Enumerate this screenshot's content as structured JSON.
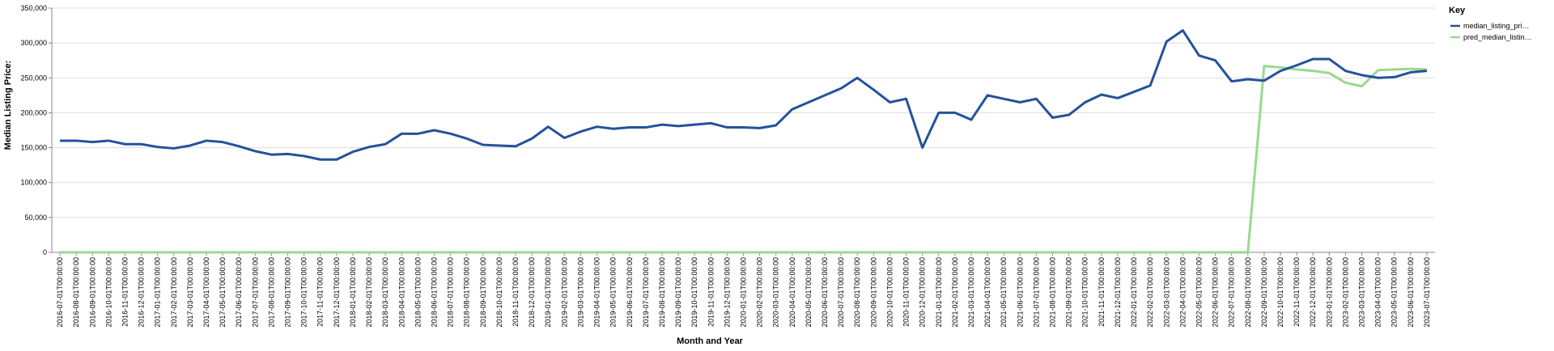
{
  "chart_data": {
    "type": "line",
    "x_label": "Month and Year",
    "y_label": "Median Listing Price:",
    "legend_title": "Key",
    "legend_position": "right",
    "grid": true,
    "categories": [
      "2016-07-01T00:00:00",
      "2016-08-01T00:00:00",
      "2016-09-01T00:00:00",
      "2016-10-01T00:00:00",
      "2016-11-01T00:00:00",
      "2016-12-01T00:00:00",
      "2017-01-01T00:00:00",
      "2017-02-01T00:00:00",
      "2017-03-01T00:00:00",
      "2017-04-01T00:00:00",
      "2017-05-01T00:00:00",
      "2017-06-01T00:00:00",
      "2017-07-01T00:00:00",
      "2017-08-01T00:00:00",
      "2017-09-01T00:00:00",
      "2017-10-01T00:00:00",
      "2017-11-01T00:00:00",
      "2017-12-01T00:00:00",
      "2018-01-01T00:00:00",
      "2018-02-01T00:00:00",
      "2018-03-01T00:00:00",
      "2018-04-01T00:00:00",
      "2018-05-01T00:00:00",
      "2018-06-01T00:00:00",
      "2018-07-01T00:00:00",
      "2018-08-01T00:00:00",
      "2018-09-01T00:00:00",
      "2018-10-01T00:00:00",
      "2018-11-01T00:00:00",
      "2018-12-01T00:00:00",
      "2019-01-01T00:00:00",
      "2019-02-01T00:00:00",
      "2019-03-01T00:00:00",
      "2019-04-01T00:00:00",
      "2019-05-01T00:00:00",
      "2019-06-01T00:00:00",
      "2019-07-01T00:00:00",
      "2019-08-01T00:00:00",
      "2019-09-01T00:00:00",
      "2019-10-01T00:00:00",
      "2019-11-01T00:00:00",
      "2019-12-01T00:00:00",
      "2020-01-01T00:00:00",
      "2020-02-01T00:00:00",
      "2020-03-01T00:00:00",
      "2020-04-01T00:00:00",
      "2020-05-01T00:00:00",
      "2020-06-01T00:00:00",
      "2020-07-01T00:00:00",
      "2020-08-01T00:00:00",
      "2020-09-01T00:00:00",
      "2020-10-01T00:00:00",
      "2020-11-01T00:00:00",
      "2020-12-01T00:00:00",
      "2021-01-01T00:00:00",
      "2021-02-01T00:00:00",
      "2021-03-01T00:00:00",
      "2021-04-01T00:00:00",
      "2021-05-01T00:00:00",
      "2021-06-01T00:00:00",
      "2021-07-01T00:00:00",
      "2021-08-01T00:00:00",
      "2021-09-01T00:00:00",
      "2021-10-01T00:00:00",
      "2021-11-01T00:00:00",
      "2021-12-01T00:00:00",
      "2022-01-01T00:00:00",
      "2022-02-01T00:00:00",
      "2022-03-01T00:00:00",
      "2022-04-01T00:00:00",
      "2022-05-01T00:00:00",
      "2022-06-01T00:00:00",
      "2022-07-01T00:00:00",
      "2022-08-01T00:00:00",
      "2022-09-01T00:00:00",
      "2022-10-01T00:00:00",
      "2022-11-01T00:00:00",
      "2022-12-01T00:00:00",
      "2023-01-01T00:00:00",
      "2023-02-01T00:00:00",
      "2023-03-01T00:00:00",
      "2023-04-01T00:00:00",
      "2023-05-01T00:00:00",
      "2023-06-01T00:00:00",
      "2023-07-01T00:00:00"
    ],
    "series": [
      {
        "name": "median_listing_pri…",
        "color": "#24529b",
        "values": [
          160000,
          160000,
          158000,
          160000,
          155000,
          155000,
          151000,
          149000,
          153000,
          160000,
          158000,
          152000,
          145000,
          140000,
          141000,
          138000,
          133000,
          133000,
          144000,
          151000,
          155000,
          170000,
          170000,
          175000,
          170000,
          163000,
          154000,
          153000,
          152000,
          163000,
          180000,
          164000,
          173000,
          180000,
          177000,
          179000,
          179000,
          183000,
          181000,
          183000,
          185000,
          179000,
          179000,
          178000,
          182000,
          205000,
          215000,
          225000,
          235000,
          250000,
          233000,
          215000,
          220000,
          150000,
          200000,
          200000,
          190000,
          225000,
          220000,
          215000,
          220000,
          193000,
          197000,
          215000,
          226000,
          221000,
          230000,
          239000,
          302000,
          318000,
          282000,
          275000,
          245000,
          248000,
          246000,
          260000,
          268000,
          277000,
          277000,
          260000,
          254000,
          250000,
          251000,
          258000,
          260000
        ]
      },
      {
        "name": "pred_median_listin…",
        "color": "#98d98e",
        "values": [
          0,
          0,
          0,
          0,
          0,
          0,
          0,
          0,
          0,
          0,
          0,
          0,
          0,
          0,
          0,
          0,
          0,
          0,
          0,
          0,
          0,
          0,
          0,
          0,
          0,
          0,
          0,
          0,
          0,
          0,
          0,
          0,
          0,
          0,
          0,
          0,
          0,
          0,
          0,
          0,
          0,
          0,
          0,
          0,
          0,
          0,
          0,
          0,
          0,
          0,
          0,
          0,
          0,
          0,
          0,
          0,
          0,
          0,
          0,
          0,
          0,
          0,
          0,
          0,
          0,
          0,
          0,
          0,
          0,
          0,
          0,
          0,
          0,
          0,
          267000,
          265000,
          262000,
          260000,
          257000,
          243000,
          238000,
          261000,
          262000,
          263000,
          262000
        ]
      }
    ],
    "ylim": [
      0,
      350000
    ],
    "yticks": [
      0,
      {
        "value": 50000,
        "label": "50,000"
      },
      {
        "value": 100000,
        "label": "100,000"
      },
      {
        "value": 150000,
        "label": "150,000"
      },
      {
        "value": 200000,
        "label": "200,000"
      },
      {
        "value": 250000,
        "label": "250,000"
      },
      {
        "value": 300000,
        "label": "300,000"
      },
      {
        "value": 350000,
        "label": "350,000"
      }
    ]
  }
}
